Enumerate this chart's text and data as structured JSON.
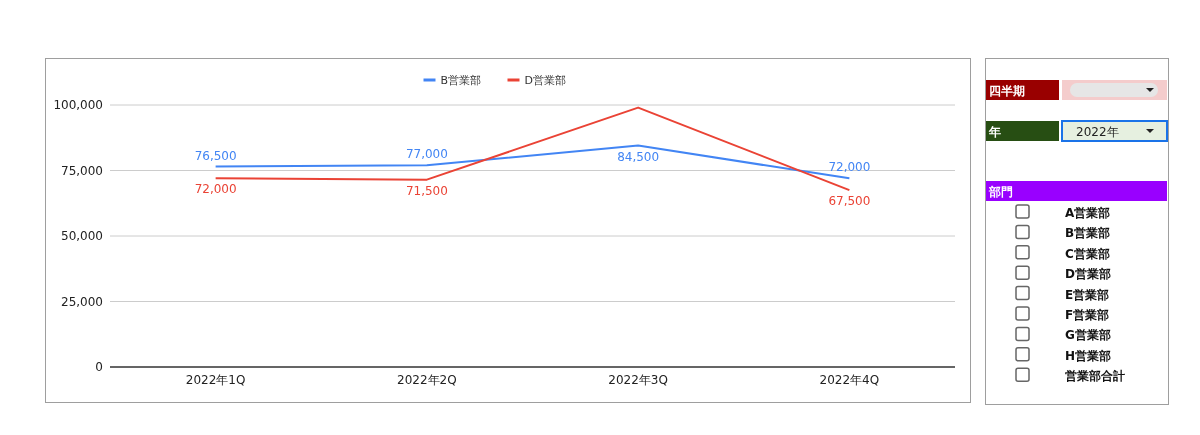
{
  "chart_data": [
    {
      "type": "line",
      "categories": [
        "2022年1Q",
        "2022年2Q",
        "2022年3Q",
        "2022年4Q"
      ],
      "series": [
        {
          "name": "B営業部",
          "color": "#4285f4",
          "values": [
            76500,
            77000,
            84500,
            72000
          ],
          "value_labels": [
            "76,500",
            "77,000",
            "84,500",
            "72,000"
          ]
        },
        {
          "name": "D営業部",
          "color": "#ea4335",
          "values": [
            72000,
            71500,
            99000,
            67500
          ],
          "value_labels": [
            "72,000",
            "71,500",
            null,
            "67,500"
          ]
        }
      ],
      "ylim": [
        0,
        100000
      ],
      "yticks": [
        0,
        {
          "value": 25000,
          "label": "25,000"
        },
        {
          "value": 50000,
          "label": "50,000"
        },
        {
          "value": 75000,
          "label": "75,000"
        },
        {
          "value": 100000,
          "label": "100,000"
        }
      ],
      "grid": "y",
      "legend": "top",
      "marker": "none",
      "line_style": "solid"
    },
    {
      "type": "other",
      "annotations": [
        "四半期",
        "年",
        "2022年",
        "部門",
        "A営業部",
        "B営業部",
        "C営業部",
        "D営業部",
        "E営業部",
        "F営業部",
        "G営業部",
        "H営業部",
        "営業部合計"
      ]
    }
  ]
}
